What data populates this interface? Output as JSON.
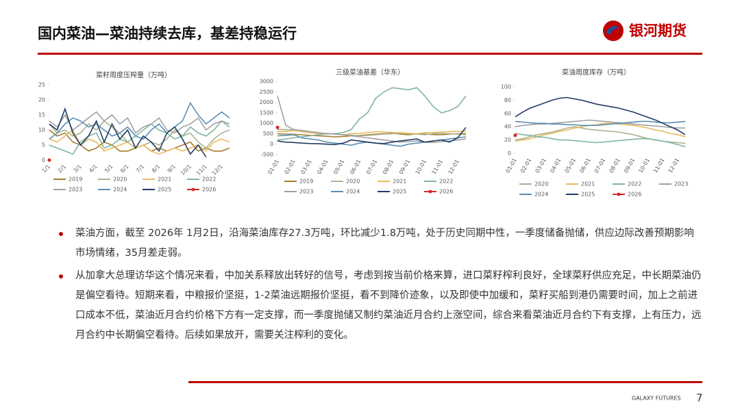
{
  "header": {
    "title": "国内菜油—菜油持续去库，基差持稳运行",
    "logo": "银河期货"
  },
  "chart_data": [
    {
      "type": "line",
      "title": "菜籽周度压榨量（万吨）",
      "categories": [
        "1/1",
        null,
        "2/1",
        null,
        "3/1",
        null,
        "4/1",
        null,
        "5/1",
        null,
        "6/1",
        null,
        "7/1",
        null,
        "8/1",
        null,
        "9/1",
        null,
        "10/1",
        null,
        "11/1",
        null,
        "12/1",
        null
      ],
      "ylim": [
        0,
        25
      ],
      "yticks": [
        0,
        5,
        10,
        15,
        20,
        25
      ],
      "series": [
        {
          "name": "2019",
          "color": "#a57c2c",
          "values": [
            10,
            8,
            9,
            6,
            5,
            3,
            4,
            6,
            5,
            3,
            3,
            4,
            5,
            3,
            4,
            3,
            4,
            5,
            6,
            3,
            4,
            3,
            3,
            4
          ]
        },
        {
          "name": "2020",
          "color": "#a9b28c",
          "values": [
            12,
            9,
            10,
            8,
            9,
            12,
            10,
            13,
            11,
            9,
            6,
            4,
            5,
            6,
            5,
            7,
            10,
            8,
            9,
            6,
            4,
            7,
            9,
            10
          ]
        },
        {
          "name": "2021",
          "color": "#e8b860",
          "values": [
            7,
            6,
            8,
            10,
            5,
            7,
            6,
            3,
            4,
            5,
            6,
            4,
            5,
            3,
            2,
            3,
            4,
            3,
            4,
            5,
            3,
            6,
            7,
            6
          ]
        },
        {
          "name": "2022",
          "color": "#7fb3a0",
          "values": [
            5,
            4,
            3,
            2,
            6,
            8,
            9,
            4,
            5,
            7,
            6,
            8,
            10,
            12,
            10,
            9,
            7,
            8,
            11,
            9,
            8,
            10,
            13,
            12
          ]
        },
        {
          "name": "2023",
          "color": "#a0a0a0",
          "values": [
            13,
            11,
            15,
            10,
            12,
            14,
            16,
            13,
            15,
            12,
            14,
            9,
            11,
            12,
            14,
            10,
            9,
            11,
            12,
            14,
            10,
            12,
            13,
            11
          ]
        },
        {
          "name": "2024",
          "color": "#5a8db5",
          "values": [
            7,
            9,
            12,
            14,
            13,
            11,
            12,
            10,
            8,
            9,
            11,
            8,
            7,
            10,
            12,
            9,
            11,
            13,
            19,
            15,
            12,
            14,
            16,
            14
          ]
        },
        {
          "name": "2025",
          "color": "#1f3b63",
          "values": [
            12,
            10,
            17,
            9,
            5,
            8,
            13,
            6,
            12,
            7,
            10,
            4,
            8,
            6,
            3,
            9,
            11,
            7,
            2,
            5,
            1,
            null,
            null,
            null
          ]
        },
        {
          "name": "2026",
          "color": "#d62728",
          "marker": true,
          "values": [
            0,
            null,
            null,
            null,
            null,
            null,
            null,
            null,
            null,
            null,
            null,
            null,
            null,
            null,
            null,
            null,
            null,
            null,
            null,
            null,
            null,
            null,
            null,
            null
          ]
        }
      ]
    },
    {
      "type": "line",
      "title": "三级菜油基差（华东）",
      "categories": [
        "01-01",
        null,
        "02-01",
        null,
        "03-01",
        null,
        "04-01",
        null,
        "05-01",
        null,
        "06-01",
        null,
        "07-01",
        null,
        "08-01",
        null,
        "09-01",
        null,
        "10-01",
        null,
        "11-01",
        null,
        "12-01",
        null
      ],
      "ylim": [
        -500,
        3000
      ],
      "yticks": [
        -500,
        0,
        500,
        1000,
        1500,
        2000,
        2500,
        3000
      ],
      "series": [
        {
          "name": "2019",
          "color": "#a57c2c",
          "values": [
            500,
            480,
            470,
            450,
            420,
            400,
            380,
            350,
            370,
            400,
            420,
            450,
            480,
            500,
            520,
            480,
            450,
            500,
            480,
            460,
            450,
            480,
            500,
            500
          ]
        },
        {
          "name": "2020",
          "color": "#a9b28c",
          "values": [
            700,
            700,
            680,
            650,
            600,
            550,
            500,
            480,
            450,
            430,
            400,
            420,
            450,
            480,
            500,
            520,
            500,
            480,
            450,
            500,
            520,
            500,
            480,
            450
          ]
        },
        {
          "name": "2021",
          "color": "#e8b860",
          "values": [
            600,
            620,
            650,
            600,
            550,
            500,
            520,
            480,
            450,
            500,
            520,
            550,
            600,
            580,
            560,
            550,
            520,
            500,
            550,
            560,
            580,
            600,
            620,
            620
          ]
        },
        {
          "name": "2022",
          "color": "#7fb3a0",
          "values": [
            200,
            250,
            300,
            350,
            400,
            450,
            500,
            500,
            550,
            700,
            1200,
            1500,
            2200,
            2500,
            2700,
            2650,
            2600,
            2700,
            2300,
            1800,
            1500,
            1600,
            1800,
            2300
          ]
        },
        {
          "name": "2023",
          "color": "#a0a0a0",
          "values": [
            2300,
            900,
            700,
            650,
            600,
            550,
            500,
            480,
            450,
            400,
            350,
            300,
            250,
            200,
            150,
            100,
            120,
            150,
            100,
            80,
            120,
            150,
            200,
            250
          ]
        },
        {
          "name": "2024",
          "color": "#5a8db5",
          "values": [
            400,
            420,
            450,
            300,
            250,
            200,
            100,
            50,
            0,
            -50,
            50,
            100,
            50,
            0,
            -50,
            -100,
            0,
            50,
            100,
            150,
            200,
            250,
            300,
            350
          ]
        },
        {
          "name": "2025",
          "color": "#1f3b63",
          "values": [
            150,
            100,
            80,
            50,
            30,
            20,
            0,
            -20,
            50,
            200,
            150,
            100,
            50,
            30,
            100,
            150,
            200,
            250,
            100,
            150,
            200,
            100,
            300,
            800
          ]
        },
        {
          "name": "2026",
          "color": "#d62728",
          "marker": true,
          "values": [
            800,
            null,
            null,
            null,
            null,
            null,
            null,
            null,
            null,
            null,
            null,
            null,
            null,
            null,
            null,
            null,
            null,
            null,
            null,
            null,
            null,
            null,
            null,
            null
          ]
        }
      ]
    },
    {
      "type": "line",
      "title": "菜油周度库存（万吨）",
      "categories": [
        "01-01",
        null,
        "02-01",
        null,
        "03-01",
        null,
        "04-01",
        null,
        "05-01",
        null,
        "06-01",
        null,
        "07-01",
        null,
        "08-01",
        null,
        "09-01",
        null,
        "10-01",
        null,
        "11-01",
        null,
        "12-01",
        null
      ],
      "ylim": [
        0,
        100
      ],
      "yticks": [
        0,
        20,
        40,
        60,
        80,
        100
      ],
      "series": [
        {
          "name": "2020",
          "color": "#a9b28c",
          "values": [
            20,
            22,
            25,
            28,
            30,
            32,
            35,
            38,
            40,
            38,
            36,
            35,
            34,
            33,
            32,
            30,
            28,
            25,
            22,
            20,
            18,
            17,
            16,
            15
          ]
        },
        {
          "name": "2021",
          "color": "#e8b860",
          "values": [
            18,
            20,
            22,
            25,
            28,
            30,
            33,
            35,
            38,
            40,
            42,
            43,
            45,
            45,
            44,
            43,
            42,
            40,
            38,
            35,
            33,
            30,
            28,
            25
          ]
        },
        {
          "name": "2022",
          "color": "#7fb3a0",
          "values": [
            30,
            28,
            27,
            25,
            24,
            22,
            20,
            20,
            19,
            18,
            17,
            16,
            17,
            18,
            19,
            20,
            21,
            22,
            22,
            20,
            18,
            16,
            13,
            10
          ]
        },
        {
          "name": "2023",
          "color": "#a0a0a0",
          "values": [
            40,
            42,
            43,
            44,
            44,
            45,
            46,
            47,
            48,
            49,
            50,
            49,
            48,
            47,
            46,
            45,
            44,
            43,
            42,
            41,
            40,
            39,
            38,
            38
          ]
        },
        {
          "name": "2024",
          "color": "#5a8db5",
          "values": [
            48,
            47,
            46,
            45,
            45,
            44,
            44,
            43,
            43,
            42,
            42,
            42,
            43,
            44,
            45,
            46,
            47,
            48,
            48,
            47,
            46,
            46,
            47,
            48
          ]
        },
        {
          "name": "2025",
          "color": "#1f3b63",
          "values": [
            55,
            62,
            68,
            72,
            76,
            80,
            83,
            84,
            82,
            80,
            77,
            74,
            72,
            70,
            68,
            65,
            62,
            58,
            54,
            50,
            45,
            40,
            35,
            28
          ]
        },
        {
          "name": "2026",
          "color": "#d62728",
          "marker": true,
          "values": [
            27,
            null,
            null,
            null,
            null,
            null,
            null,
            null,
            null,
            null,
            null,
            null,
            null,
            null,
            null,
            null,
            null,
            null,
            null,
            null,
            null,
            null,
            null,
            null
          ]
        }
      ]
    }
  ],
  "bullets": [
    "菜油方面，截至 2026年 1月2日，沿海菜油库存27.3万吨，环比减少1.8万吨，处于历史同期中性，一季度储备抛储，供应边际改善预期影响市场情绪，35月差走弱。",
    "从加拿大总理访华这个情况来看，中加关系释放出转好的信号，考虑到按当前价格来算，进口菜籽榨利良好，全球菜籽供应充足，中长期菜油仍是偏空看待。短期来看，中粮报价坚挺，1-2菜油远期报价坚挺，看不到降价迹象，以及即使中加缓和，菜籽买船到港仍需要时间，加上之前进口成本不低，菜油近月合约价格下方有一定支撑，而一季度抛储又制约菜油近月合约上涨空间，综合来看菜油近月合约下有支撑，上有压力，远月合约中长期偏空看待。后续如果放开，需要关注榨利的变化。"
  ],
  "footer": {
    "brand": "GALAXY FUTURES",
    "page": "7"
  }
}
